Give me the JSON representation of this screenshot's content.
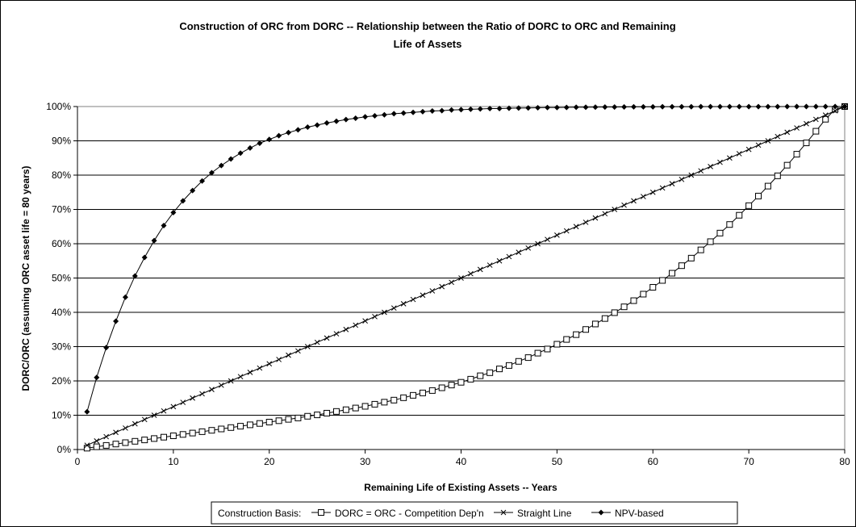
{
  "chart_data": {
    "type": "line",
    "title": "Construction of ORC from DORC -- Relationship between the Ratio of DORC to ORC and Remaining Life of Assets",
    "title_lines": [
      "Construction of ORC from DORC -- Relationship between the Ratio of DORC to ORC and Remaining",
      "Life of Assets"
    ],
    "xlabel": "Remaining Life of Existing Assets -- Years",
    "ylabel": "DORC/ORC (assuming ORC asset life = 80 years)",
    "xlim": [
      0,
      80
    ],
    "ylim": [
      0,
      100
    ],
    "x_ticks": [
      0,
      10,
      20,
      30,
      40,
      50,
      60,
      70,
      80
    ],
    "x_tick_labels": [
      "0",
      "10",
      "20",
      "30",
      "40",
      "50",
      "60",
      "70",
      "80"
    ],
    "y_ticks": [
      0,
      10,
      20,
      30,
      40,
      50,
      60,
      70,
      80,
      90,
      100
    ],
    "y_tick_labels": [
      "0%",
      "10%",
      "20%",
      "30%",
      "40%",
      "50%",
      "60%",
      "70%",
      "80%",
      "90%",
      "100%"
    ],
    "grid": "horizontal",
    "legend_position": "bottom",
    "legend_title": "Construction Basis:",
    "x": [
      1,
      2,
      3,
      4,
      5,
      6,
      7,
      8,
      9,
      10,
      11,
      12,
      13,
      14,
      15,
      16,
      17,
      18,
      19,
      20,
      21,
      22,
      23,
      24,
      25,
      26,
      27,
      28,
      29,
      30,
      31,
      32,
      33,
      34,
      35,
      36,
      37,
      38,
      39,
      40,
      41,
      42,
      43,
      44,
      45,
      46,
      47,
      48,
      49,
      50,
      51,
      52,
      53,
      54,
      55,
      56,
      57,
      58,
      59,
      60,
      61,
      62,
      63,
      64,
      65,
      66,
      67,
      68,
      69,
      70,
      71,
      72,
      73,
      74,
      75,
      76,
      77,
      78,
      79,
      80
    ],
    "series": [
      {
        "name": "DORC = ORC - Competition Dep'n",
        "marker": "square",
        "values": [
          0.4,
          0.8,
          1.2,
          1.6,
          2.0,
          2.4,
          2.8,
          3.2,
          3.6,
          4.0,
          4.4,
          4.8,
          5.2,
          5.6,
          6.0,
          6.4,
          6.8,
          7.2,
          7.6,
          8.0,
          8.4,
          8.8,
          9.2,
          9.7,
          10.1,
          10.6,
          11.1,
          11.6,
          12.1,
          12.6,
          13.2,
          13.8,
          14.4,
          15.1,
          15.8,
          16.5,
          17.2,
          18.0,
          18.8,
          19.6,
          20.5,
          21.5,
          22.4,
          23.5,
          24.5,
          25.7,
          26.8,
          28.1,
          29.3,
          30.7,
          32.1,
          33.5,
          35.0,
          36.6,
          38.2,
          39.9,
          41.6,
          43.4,
          45.3,
          47.3,
          49.3,
          51.4,
          53.6,
          55.8,
          58.2,
          60.6,
          63.1,
          65.6,
          68.3,
          71.1,
          73.9,
          76.8,
          79.8,
          82.9,
          86.1,
          89.4,
          92.8,
          96.3,
          99.2,
          100.0
        ]
      },
      {
        "name": "Straight Line",
        "marker": "x",
        "values": [
          1.25,
          2.5,
          3.75,
          5.0,
          6.25,
          7.5,
          8.75,
          10.0,
          11.25,
          12.5,
          13.75,
          15.0,
          16.25,
          17.5,
          18.75,
          20.0,
          21.25,
          22.5,
          23.75,
          25.0,
          26.25,
          27.5,
          28.75,
          30.0,
          31.25,
          32.5,
          33.75,
          35.0,
          36.25,
          37.5,
          38.75,
          40.0,
          41.25,
          42.5,
          43.75,
          45.0,
          46.25,
          47.5,
          48.75,
          50.0,
          51.25,
          52.5,
          53.75,
          55.0,
          56.25,
          57.5,
          58.75,
          60.0,
          61.25,
          62.5,
          63.75,
          65.0,
          66.25,
          67.5,
          68.75,
          70.0,
          71.25,
          72.5,
          73.75,
          75.0,
          76.25,
          77.5,
          78.75,
          80.0,
          81.25,
          82.5,
          83.75,
          85.0,
          86.25,
          87.5,
          88.75,
          90.0,
          91.25,
          92.5,
          93.75,
          95.0,
          96.25,
          97.5,
          98.75,
          100.0
        ]
      },
      {
        "name": "NPV-based",
        "marker": "diamond",
        "values": [
          11.0,
          21.0,
          29.7,
          37.4,
          44.4,
          50.6,
          56.0,
          60.9,
          65.3,
          69.1,
          72.5,
          75.5,
          78.3,
          80.7,
          82.8,
          84.7,
          86.4,
          87.9,
          89.3,
          90.4,
          91.5,
          92.4,
          93.2,
          94.0,
          94.6,
          95.2,
          95.7,
          96.2,
          96.6,
          97.0,
          97.3,
          97.6,
          97.9,
          98.1,
          98.3,
          98.5,
          98.7,
          98.8,
          99.0,
          99.1,
          99.2,
          99.3,
          99.4,
          99.4,
          99.5,
          99.55,
          99.6,
          99.65,
          99.7,
          99.72,
          99.75,
          99.78,
          99.8,
          99.82,
          99.84,
          99.86,
          99.88,
          99.9,
          99.91,
          99.92,
          99.93,
          99.94,
          99.95,
          99.95,
          99.96,
          99.96,
          99.97,
          99.97,
          99.97,
          99.98,
          99.98,
          99.98,
          99.98,
          99.99,
          99.99,
          99.99,
          99.99,
          99.99,
          100.0,
          100.0
        ]
      }
    ]
  }
}
